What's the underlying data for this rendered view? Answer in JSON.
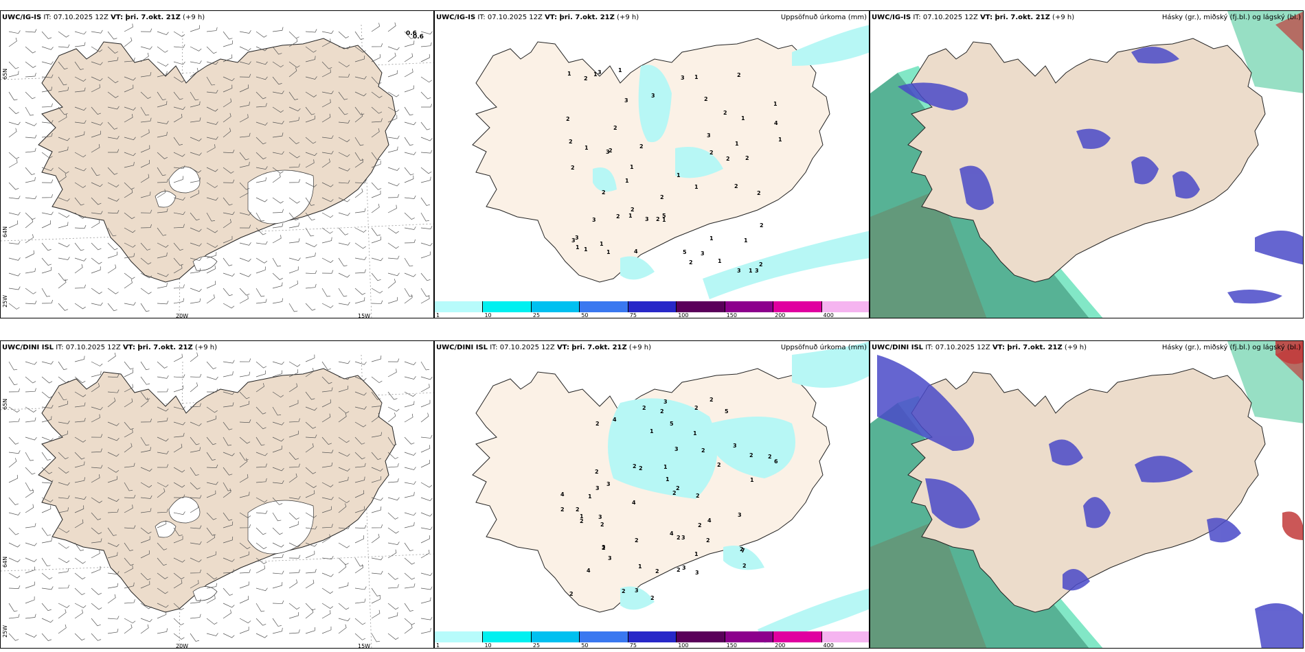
{
  "colors": {
    "land": "#ecdccb",
    "land_precip": "#fbf1e6",
    "precip_light": "#b7f7f5",
    "cloud_high": "#2fbf8a",
    "cloud_mid": "#4a4ac8",
    "cloud_low": "#c23a3a",
    "sea_cloud": "#3aa582"
  },
  "rows": [
    {
      "model": "UWC/IG-IS",
      "it": "IT: 07.10.2025 12Z",
      "vt": "VT: þri. 7.okt. 21Z",
      "lead": "(+9 h)",
      "wind_numbers": [
        "0.6",
        "0.6"
      ],
      "precip_title": "Uppsöfnuð úrkoma (mm)",
      "cloud_title": "Hásky (gr.), miðský (fj.bl.) og lágský (bl.)",
      "precip_labels": [
        "2",
        "3",
        "1",
        "2",
        "3",
        "3",
        "2",
        "1",
        "1",
        "2",
        "2",
        "3",
        "1",
        "3",
        "1",
        "1",
        "1",
        "1",
        "1",
        "2",
        "1",
        "2",
        "3",
        "2",
        "1",
        "2",
        "5",
        "3",
        "1",
        "3",
        "2",
        "3",
        "1",
        "2",
        "2",
        "2",
        "1",
        "3",
        "2",
        "4",
        "2",
        "2",
        "2",
        "1",
        "1",
        "1",
        "5",
        "2",
        "1",
        "2",
        "2",
        "1",
        "1",
        "2",
        "4",
        "3",
        "1",
        "2",
        "3",
        "1",
        "1",
        "3",
        "2"
      ]
    },
    {
      "model": "UWC/DINI ISL",
      "it": "IT: 07.10.2025 12Z",
      "vt": "VT: þri. 7.okt. 21Z",
      "lead": "(+9 h)",
      "wind_numbers": [],
      "precip_title": "Uppsöfnuð úrkoma (mm)",
      "cloud_title": "Hásky (gr.), miðský (fj.bl.) og lágský (bl.)",
      "precip_labels": [
        "4",
        "5",
        "4",
        "3",
        "2",
        "3",
        "2",
        "3",
        "2",
        "2",
        "2",
        "3",
        "2",
        "2",
        "2",
        "2",
        "2",
        "4",
        "2",
        "3",
        "3",
        "2",
        "1",
        "2",
        "1",
        "1",
        "1",
        "2",
        "3",
        "4",
        "2",
        "3",
        "3",
        "4",
        "7",
        "2",
        "2",
        "2",
        "2",
        "3",
        "6",
        "5",
        "2",
        "3",
        "2",
        "3",
        "2",
        "2",
        "2",
        "1",
        "2",
        "2",
        "1",
        "1",
        "4",
        "3",
        "2",
        "2",
        "2",
        "1",
        "2",
        "2",
        "1"
      ]
    }
  ],
  "axes": {
    "lon_labels": [
      "20W",
      "15W"
    ],
    "lat_labels": [
      "65N",
      "64N",
      "25W"
    ]
  },
  "colorbar": {
    "ticks": [
      "1",
      "10",
      "25",
      "50",
      "75",
      "100",
      "150",
      "200",
      "400"
    ],
    "colors": [
      "#b7fbfb",
      "#00f0f0",
      "#00c0f0",
      "#3a78f0",
      "#2828c8",
      "#5a005a",
      "#8c008c",
      "#e000a0",
      "#f5b4f0"
    ]
  }
}
